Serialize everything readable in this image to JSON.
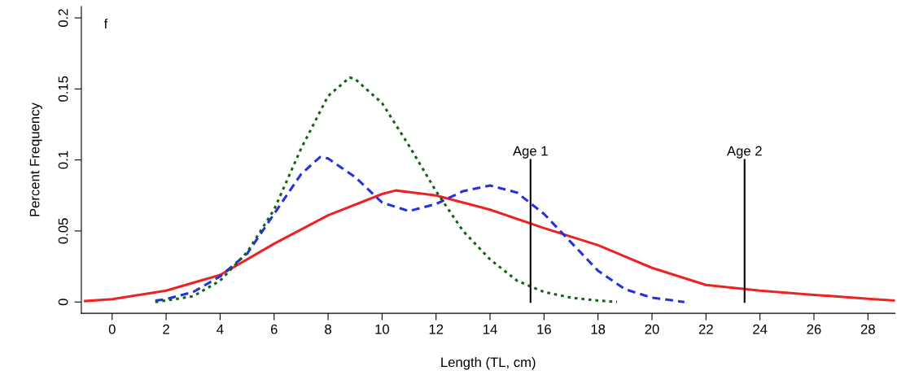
{
  "chart_data": {
    "type": "line",
    "xlabel": "Length (TL, cm)",
    "ylabel": "Percent Frequency",
    "xlim": [
      -1.14,
      29.0
    ],
    "ylim": [
      -0.008,
      0.208
    ],
    "xticks": [
      0,
      2,
      4,
      6,
      8,
      10,
      12,
      14,
      16,
      18,
      20,
      22,
      24,
      26,
      28
    ],
    "yticks": [
      0,
      0.05,
      0.1,
      0.15,
      0.2
    ],
    "grid": false,
    "ref_lines": [
      {
        "axis": "x",
        "value": 15.5,
        "label": "Age 1",
        "color": "#000000"
      },
      {
        "axis": "x",
        "value": 23.43,
        "label": "Age 2",
        "color": "#000000"
      }
    ],
    "series": [
      {
        "color": "#ee2222",
        "line_style": "solid",
        "x": [
          -1,
          0,
          2,
          4,
          6,
          8,
          10,
          10.5,
          12,
          14,
          16,
          18,
          20,
          22,
          24,
          26,
          28,
          29
        ],
        "values": [
          0.0006,
          0.002,
          0.008,
          0.019,
          0.041,
          0.061,
          0.076,
          0.0785,
          0.075,
          0.065,
          0.052,
          0.04,
          0.024,
          0.012,
          0.008,
          0.005,
          0.0023,
          0.001
        ]
      },
      {
        "color": "#2233dd",
        "line_style": "dashed",
        "x": [
          1.6,
          2,
          3,
          4,
          5,
          6,
          7,
          7.7,
          8,
          9,
          10,
          11,
          12,
          13,
          14,
          15,
          16,
          17,
          18,
          19,
          20,
          21.2
        ],
        "values": [
          0.001,
          0.002,
          0.007,
          0.018,
          0.034,
          0.062,
          0.09,
          0.102,
          0.101,
          0.088,
          0.07,
          0.064,
          0.069,
          0.078,
          0.082,
          0.077,
          0.062,
          0.042,
          0.022,
          0.009,
          0.003,
          0
        ]
      },
      {
        "color": "#116611",
        "line_style": "dotted",
        "x": [
          1.6,
          2,
          3,
          4,
          5,
          6,
          7,
          8,
          8.8,
          9,
          10,
          11,
          12,
          13,
          14,
          15,
          16,
          17,
          18,
          18.7
        ],
        "values": [
          0,
          0.001,
          0.004,
          0.015,
          0.035,
          0.065,
          0.108,
          0.145,
          0.158,
          0.157,
          0.14,
          0.11,
          0.078,
          0.05,
          0.03,
          0.015,
          0.007,
          0.003,
          0.001,
          0
        ]
      }
    ],
    "annotations": [
      "f"
    ]
  }
}
